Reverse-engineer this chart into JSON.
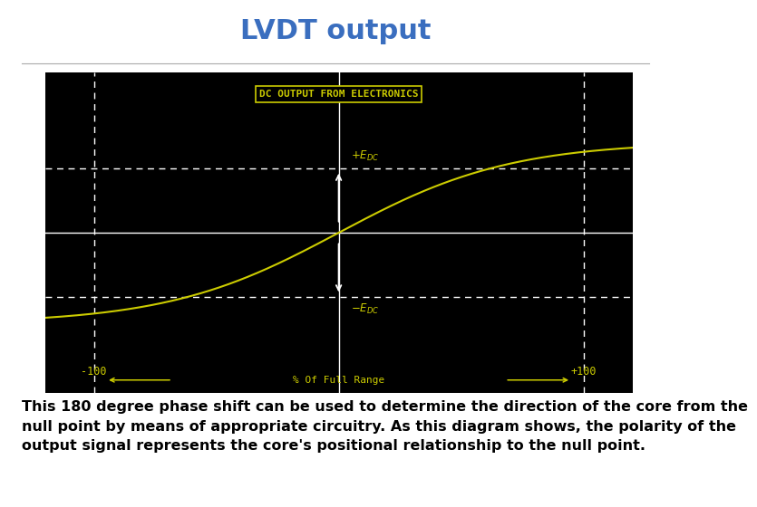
{
  "title": "LVDT output",
  "title_color": "#3a6ebf",
  "title_fontsize": 22,
  "title_bold": true,
  "bg_color": "#000000",
  "outer_bg": "#ffffff",
  "box_label": "DC OUTPUT FROM ELECTRONICS",
  "box_label_color": "#cccc00",
  "box_border_color": "#cccc00",
  "curve_color": "#cccc00",
  "axis_color": "#ffffff",
  "dashed_color": "#ffffff",
  "text_color": "#cccc00",
  "arrow_color": "#ffffff",
  "x_min": -120,
  "x_max": 120,
  "y_min": -1.5,
  "y_max": 1.5,
  "edc_y": 0.6,
  "x_left_label": "-100",
  "x_right_label": "+100",
  "x_axis_label": "% Of Full Range",
  "body_text": "This 180 degree phase shift can be used to determine the direction of the core from the\nnull point by means of appropriate circuitry. As this diagram shows, the polarity of the\noutput signal represents the core's positional relationship to the null point.",
  "body_text_color": "#000000",
  "body_text_fontsize": 11.5
}
